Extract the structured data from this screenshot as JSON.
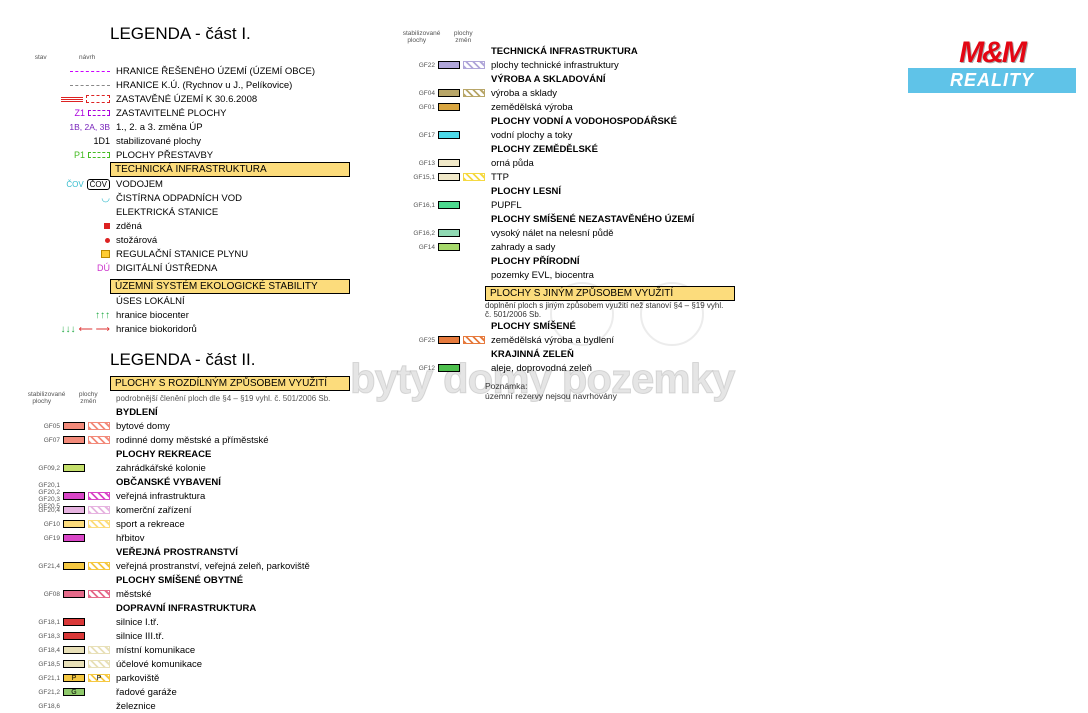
{
  "logo": {
    "top": "M&M",
    "bottom": "REALITY"
  },
  "watermark": "byty domy pozemky",
  "legend1": {
    "title": "LEGENDA - část I.",
    "hdr": {
      "stav": "stav",
      "navrh": "návrh"
    },
    "rows": [
      {
        "sym": "line-dashed-magenta",
        "text": "HRANICE ŘEŠENÉHO ÚZEMÍ (ÚZEMÍ OBCE)"
      },
      {
        "sym": "line-dashed-gray",
        "text": "HRANICE K.Ú. (Rychnov u J., Pelíkovice)"
      },
      {
        "sym": "fill-red",
        "text": "ZASTAVĚNÉ ÚZEMÍ K 30.6.2008"
      },
      {
        "sym": "zone-z1",
        "code": "Z1",
        "text": "ZASTAVITELNÉ PLOCHY"
      },
      {
        "sym": "text-purple",
        "code": "1B, 2A, 3B",
        "text": "1., 2. a 3. změna ÚP"
      },
      {
        "sym": "text-black",
        "code": "1D1",
        "text": "stabilizované plochy"
      },
      {
        "sym": "zone-p1",
        "code": "P1",
        "text": "PLOCHY PŘESTAVBY"
      }
    ],
    "band1": {
      "text": "TECHNICKÁ INFRASTRUKTURA",
      "color": "#fcdc7c"
    },
    "tech": [
      {
        "sym": "cov",
        "text": "VODOJEM"
      },
      {
        "sym": "cov2",
        "text": "ČISTÍRNA ODPADNÍCH VOD"
      },
      {
        "sym": "none",
        "text": "ELEKTRICKÁ STANICE"
      },
      {
        "sym": "sq-red",
        "text": "zděná"
      },
      {
        "sym": "dot-red",
        "text": "stožárová"
      },
      {
        "sym": "sq-yellow",
        "text": "REGULAČNÍ STANICE PLYNU"
      },
      {
        "sym": "du",
        "text": "DIGITÁLNÍ ÚSTŘEDNA"
      }
    ],
    "band2": {
      "text": "ÚZEMNÍ SYSTÉM EKOLOGICKÉ STABILITY",
      "color": "#fcdc7c"
    },
    "uses": [
      {
        "sym": "none",
        "text": "ÚSES LOKÁLNÍ"
      },
      {
        "sym": "arrows-green",
        "text": "hranice biocenter"
      },
      {
        "sym": "arrows-red",
        "text": "hranice biokoridorů"
      }
    ]
  },
  "legend2": {
    "title": "LEGENDA - část II.",
    "band": {
      "text": "PLOCHY S ROZDÍLNÝM ZPŮSOBEM VYUŽITÍ",
      "color": "#fcdc7c"
    },
    "hdr": {
      "a": "stabilizované\nplochy",
      "b": "plochy\nzměn"
    },
    "note": "podrobnější členění ploch dle §4 – §19 vyhl. č. 501/2006 Sb.",
    "groups": [
      {
        "label": "BYDLENÍ",
        "items": [
          {
            "code": "GF05",
            "c1": "#f28a7a",
            "c2": "#f28a7a",
            "text": "bytové domy"
          },
          {
            "code": "GF07",
            "c1": "#f28a7a",
            "c2": "#f28a7a",
            "text": "rodinné domy městské a příměstské"
          }
        ]
      },
      {
        "label": "PLOCHY REKREACE",
        "items": [
          {
            "code": "GF09,2",
            "c1": "#c4df6b",
            "text": "zahrádkářské kolonie"
          }
        ]
      },
      {
        "label": "OBČANSKÉ VYBAVENÍ",
        "items": [
          {
            "code": "GF20,1\nGF20,2\nGF20,3\nGF20,5",
            "c1": "#d946c7",
            "c2": "#d946c7",
            "text": "veřejná infrastruktura"
          },
          {
            "code": "GF20,4",
            "c1": "#e6b3e0",
            "c2": "#e6b3e0",
            "text": "komerční zařízení"
          },
          {
            "code": "GF10",
            "c1": "#fcdc7c",
            "c2": "#fcdc7c",
            "text": "sport a rekreace"
          },
          {
            "code": "GF19",
            "c1": "#d946c7",
            "text": "hřbitov"
          }
        ]
      },
      {
        "label": "VEŘEJNÁ PROSTRANSTVÍ",
        "items": [
          {
            "code": "GF21,4",
            "c1": "#f5c842",
            "c2": "#f5c842",
            "text": "veřejná prostranství, veřejná zeleň, parkoviště"
          }
        ]
      },
      {
        "label": "PLOCHY SMÍŠENÉ OBYTNÉ",
        "items": [
          {
            "code": "GF08",
            "c1": "#e56b8a",
            "c2": "#e56b8a",
            "text": "městské"
          }
        ]
      },
      {
        "label": "DOPRAVNÍ INFRASTRUKTURA",
        "items": [
          {
            "code": "GF18,1",
            "c1": "#d93838",
            "text": "silnice I.tř."
          },
          {
            "code": "GF18,3",
            "c1": "#d93838",
            "text": "silnice III.tř."
          },
          {
            "code": "GF18,4",
            "c1": "#e8e0b8",
            "c2": "#e8e0b8",
            "text": "místní komunikace"
          },
          {
            "code": "GF18,5",
            "c1": "#e8e0b8",
            "c2": "#e8e0b8",
            "text": "účelové komunikace"
          },
          {
            "code": "GF21,1",
            "c1": "#f5c842",
            "c2": "#f5c842",
            "mark": "P",
            "text": "parkoviště"
          },
          {
            "code": "GF21,2",
            "c1": "#8fc96b",
            "mark": "G",
            "text": "řadové garáže"
          },
          {
            "code": "GF18,6",
            "c1": "",
            "text": "železnice"
          }
        ]
      }
    ]
  },
  "col2": {
    "hdr": {
      "a": "stabilizované\nplochy",
      "b": "plochy\nzměn"
    },
    "groups": [
      {
        "label": "TECHNICKÁ INFRASTRUKTURA",
        "items": [
          {
            "code": "GF22",
            "c1": "#b0a6d9",
            "c2": "#b0a6d9",
            "text": "plochy technické infrastruktury"
          }
        ]
      },
      {
        "label": "VÝROBA A SKLADOVÁNÍ",
        "items": [
          {
            "code": "GF04",
            "c1": "#b8a668",
            "c2": "#b8a668",
            "text": "výroba a sklady"
          },
          {
            "code": "GF01",
            "c1": "#d9a640",
            "text": "zemědělská výroba"
          }
        ]
      },
      {
        "label": "PLOCHY VODNÍ A VODOHOSPODÁŘSKÉ",
        "items": [
          {
            "code": "GF17",
            "c1": "#4dd9e8",
            "text": "vodní plochy a toky"
          }
        ]
      },
      {
        "label": "PLOCHY ZEMĚDĚLSKÉ",
        "items": [
          {
            "code": "GF13",
            "c1": "#f0e8c8",
            "text": "orná půda"
          },
          {
            "code": "GF15,1",
            "c1": "#f0e8c8",
            "c2": "#f5d942",
            "text": "TTP"
          }
        ]
      },
      {
        "label": "PLOCHY LESNÍ",
        "items": [
          {
            "code": "GF16,1",
            "c1": "#4dd98f",
            "text": "PUPFL"
          }
        ]
      },
      {
        "label": "PLOCHY SMÍŠENÉ NEZASTAVĚNÉHO ÚZEMÍ",
        "items": [
          {
            "code": "GF16,2",
            "c1": "#8fd9b3",
            "text": "vysoký nálet na nelesní půdě"
          },
          {
            "code": "GF14",
            "c1": "#a6d96b",
            "text": "zahrady a sady"
          }
        ]
      },
      {
        "label": "PLOCHY PŘÍRODNÍ",
        "items": [
          {
            "code": "",
            "text": "pozemky EVL, biocentra"
          }
        ]
      }
    ],
    "band": {
      "text": "PLOCHY S JINÝM ZPŮSOBEM VYUŽITÍ",
      "color": "#fcdc7c"
    },
    "note2": "doplnění ploch s jiným způsobem využití než stanoví §4 – §19 vyhl.\nč. 501/2006 Sb.",
    "groups2": [
      {
        "label": "PLOCHY SMÍŠENÉ",
        "items": [
          {
            "code": "GF25",
            "c1": "#e67a3d",
            "c2": "#e67a3d",
            "text": "zemědělská výroba a bydlení"
          }
        ]
      },
      {
        "label": "KRAJINNÁ ZELEŇ",
        "items": [
          {
            "code": "GF12",
            "c1": "#4dbf4d",
            "text": "aleje, doprovodná zeleň"
          }
        ]
      }
    ],
    "note3_label": "Poznámka:",
    "note3": "územní rezervy nejsou navrhovány"
  }
}
